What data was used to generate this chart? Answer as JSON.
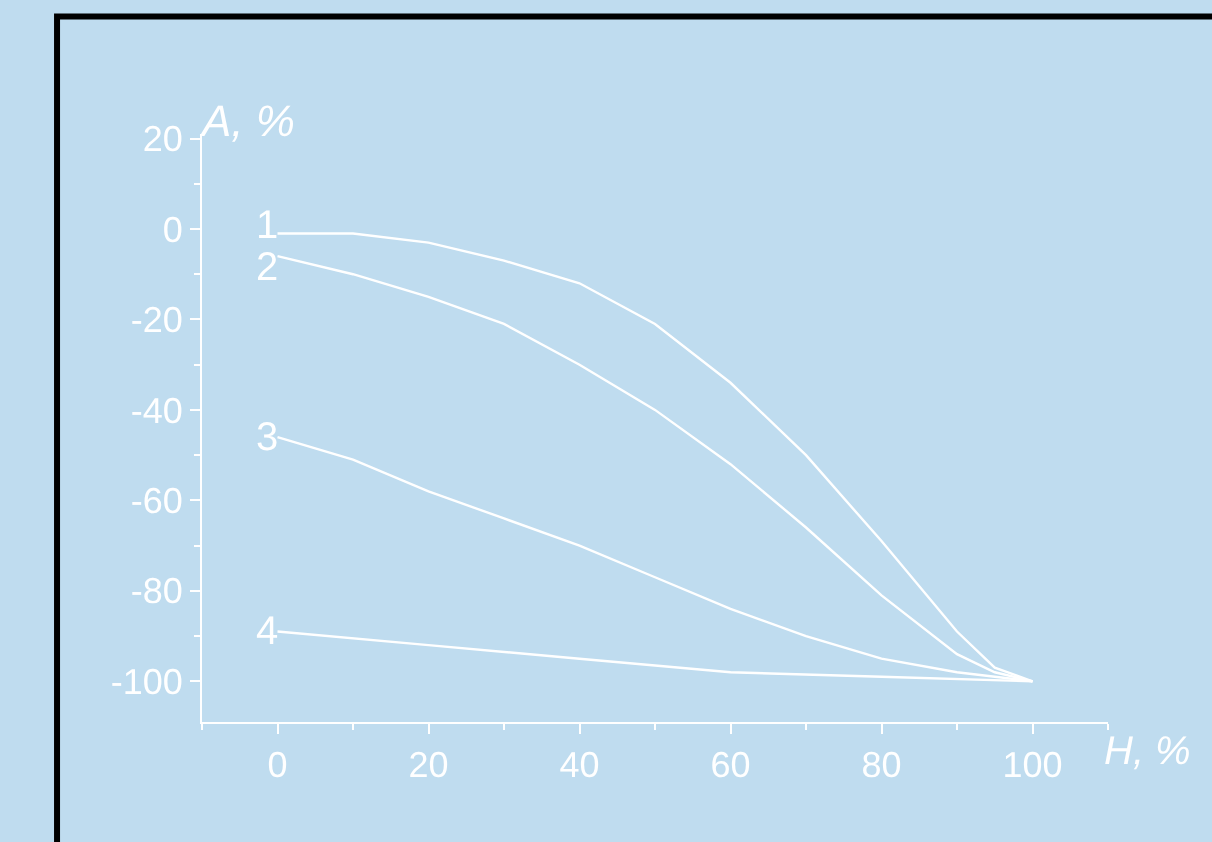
{
  "chart_data": {
    "type": "line",
    "xlabel": "H, %",
    "ylabel": "A, %",
    "xlim": [
      -10,
      110
    ],
    "ylim": [
      -109,
      21
    ],
    "xticks": [
      0,
      20,
      40,
      60,
      80,
      100
    ],
    "yticks": [
      20,
      0,
      -20,
      -40,
      -60,
      -80,
      -100
    ],
    "grid": false,
    "marker": "none",
    "line_style": "solid",
    "series": [
      {
        "color": "#ffffff",
        "x": [
          0,
          10,
          20,
          30,
          40,
          50,
          60,
          70,
          80,
          90,
          95,
          100
        ],
        "values": [
          -1,
          -1,
          -3,
          -7,
          -12,
          -21,
          -34,
          -50,
          -69,
          -89,
          -97,
          -100
        ]
      },
      {
        "color": "#ffffff",
        "x": [
          0,
          10,
          20,
          30,
          40,
          50,
          60,
          70,
          80,
          90,
          95,
          100
        ],
        "values": [
          -6,
          -10,
          -15,
          -21,
          -30,
          -40,
          -52,
          -66,
          -81,
          -94,
          -98,
          -100
        ]
      },
      {
        "color": "#ffffff",
        "x": [
          0,
          10,
          20,
          30,
          40,
          50,
          60,
          70,
          80,
          90,
          100
        ],
        "values": [
          -46,
          -51,
          -58,
          -64,
          -70,
          -77,
          -84,
          -90,
          -95,
          -98,
          -100
        ]
      },
      {
        "color": "#ffffff",
        "x": [
          0,
          20,
          40,
          60,
          80,
          100
        ],
        "values": [
          -89,
          -92,
          -95,
          -98,
          -99,
          -100
        ]
      }
    ],
    "annotations": [
      "1",
      "2",
      "3",
      "4"
    ]
  }
}
